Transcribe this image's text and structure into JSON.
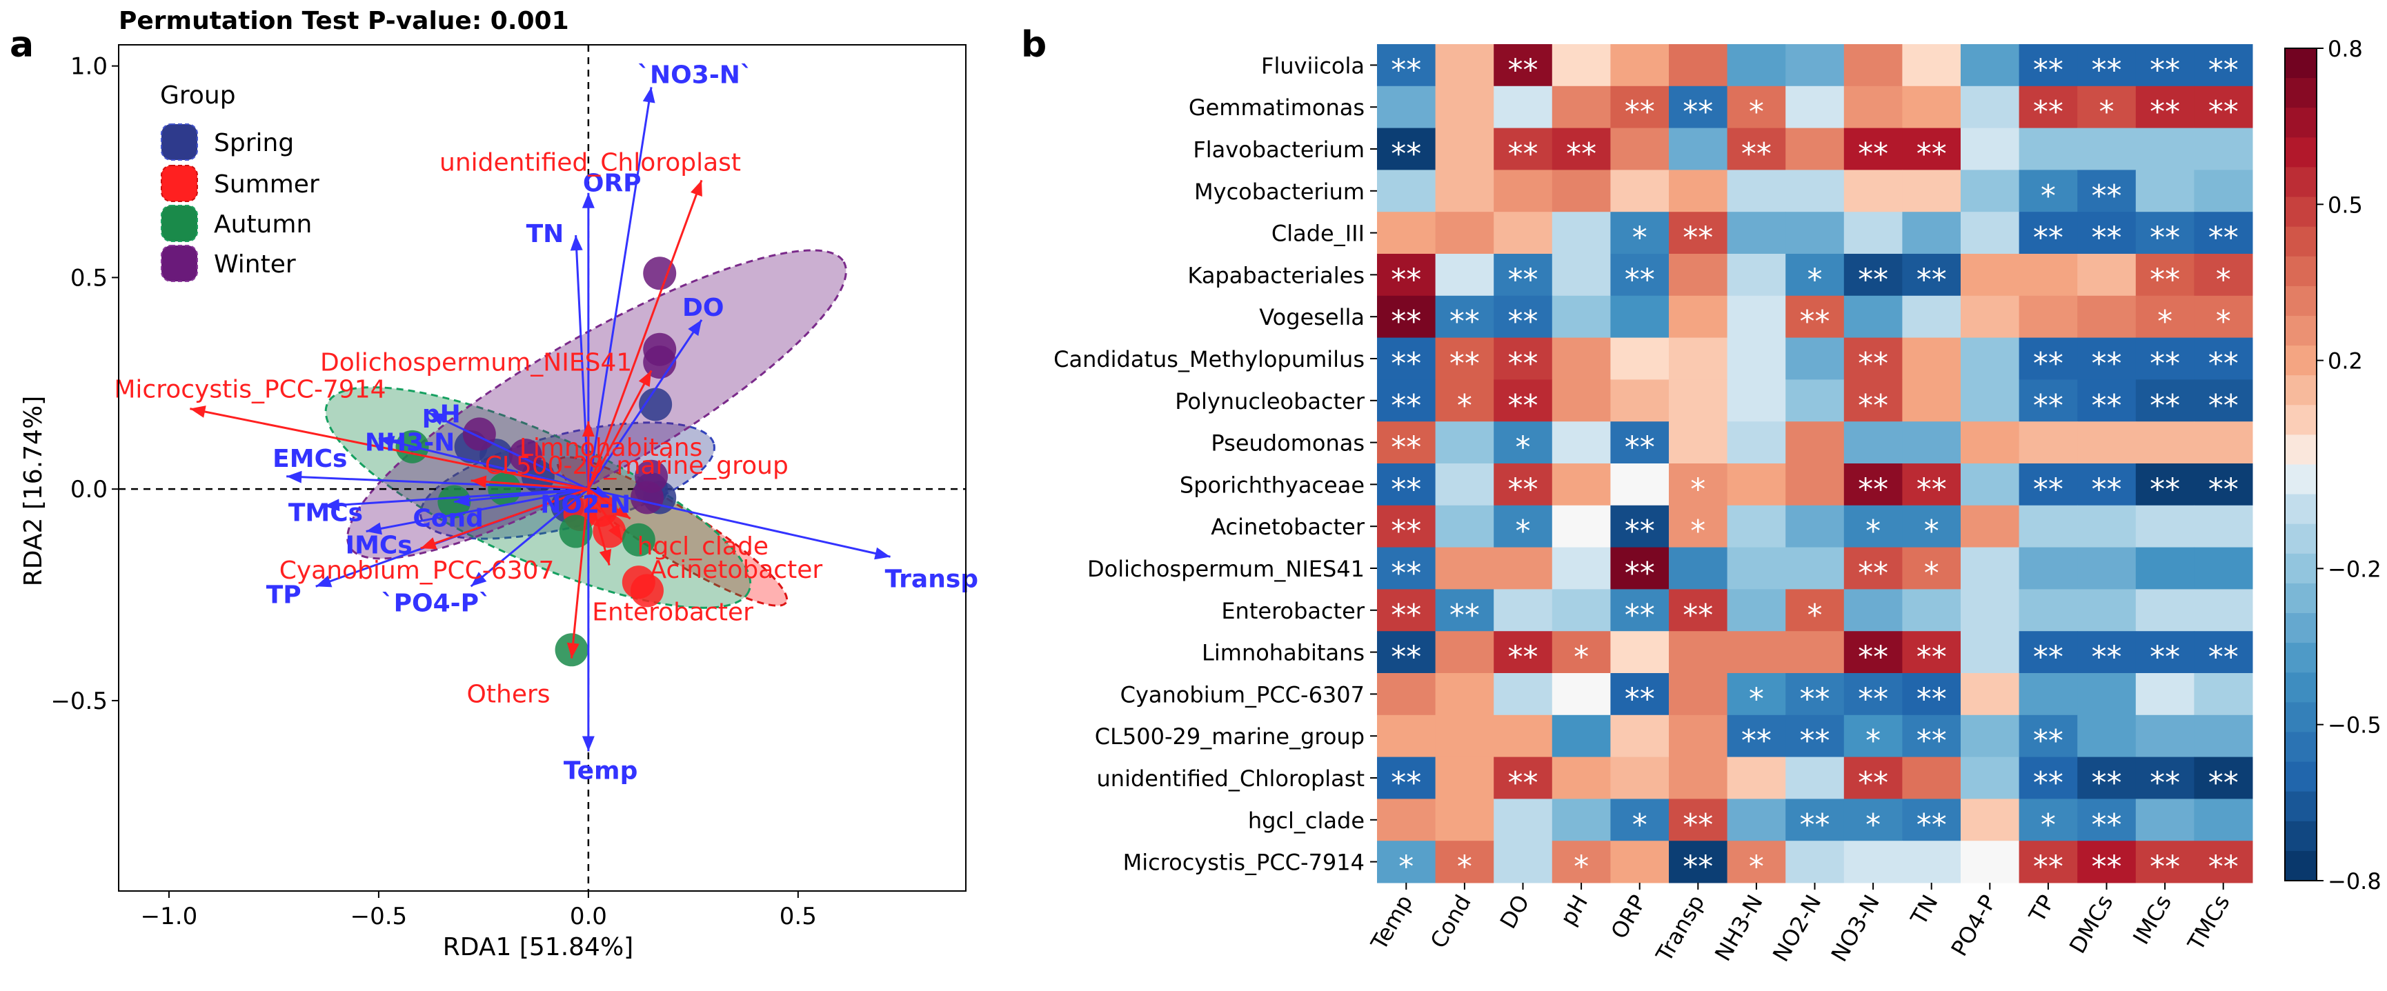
{
  "panels": {
    "a_label": "a",
    "b_label": "b"
  },
  "colors": {
    "biplot_blue": "#3333ff",
    "biplot_red": "#ff2020",
    "spring": "#2e3a8c",
    "summer": "#ff2020",
    "autumn": "#1a8a4a",
    "winter": "#6a1a7a"
  },
  "chart_data": [
    {
      "type": "scatter",
      "subtype": "rda_biplot",
      "title": "Permutation Test P-value: 0.001",
      "xlabel": "RDA1 [51.84%]",
      "ylabel": "RDA2 [16.74%]",
      "xlim": [
        -1.12,
        0.9
      ],
      "ylim": [
        -0.95,
        1.05
      ],
      "xticks": [
        -1.0,
        -0.5,
        0.0,
        0.5
      ],
      "xtick_labels": [
        "−1.0",
        "−0.5",
        "0.0",
        "0.5"
      ],
      "yticks": [
        -0.5,
        0.0,
        0.5,
        1.0
      ],
      "ytick_labels": [
        "−0.5",
        "0.0",
        "0.5",
        "1.0"
      ],
      "legend": {
        "title": "Group",
        "position": "top-left",
        "entries": [
          "Spring",
          "Summer",
          "Autumn",
          "Winter"
        ]
      },
      "groups": [
        {
          "name": "Spring",
          "color": "#2e3a8c",
          "ellipse": {
            "cx": -0.05,
            "cy": 0.02,
            "rx": 0.36,
            "ry": 0.11,
            "angle_deg": 14
          },
          "points": [
            [
              -0.28,
              0.1
            ],
            [
              -0.22,
              0.08
            ],
            [
              -0.12,
              0.03
            ],
            [
              0.15,
              0.0
            ],
            [
              0.17,
              -0.02
            ],
            [
              0.16,
              0.2
            ],
            [
              -0.05,
              -0.04
            ]
          ]
        },
        {
          "name": "Summer",
          "color": "#ff2020",
          "ellipse": {
            "cx": 0.2,
            "cy": -0.1,
            "rx": 0.32,
            "ry": 0.06,
            "angle_deg": -32
          },
          "points": [
            [
              0.12,
              -0.22
            ],
            [
              0.14,
              -0.24
            ],
            [
              0.05,
              -0.1
            ],
            [
              0.03,
              -0.05
            ],
            [
              -0.02,
              -0.06
            ]
          ]
        },
        {
          "name": "Autumn",
          "color": "#1a8a4a",
          "ellipse": {
            "cx": -0.12,
            "cy": -0.02,
            "rx": 0.55,
            "ry": 0.15,
            "angle_deg": -24
          },
          "points": [
            [
              -0.42,
              0.1
            ],
            [
              -0.32,
              -0.03
            ],
            [
              -0.04,
              -0.38
            ],
            [
              -0.03,
              -0.1
            ],
            [
              0.12,
              -0.12
            ],
            [
              -0.2,
              0.0
            ]
          ]
        },
        {
          "name": "Winter",
          "color": "#6a1a7a",
          "ellipse": {
            "cx": 0.02,
            "cy": 0.2,
            "rx": 0.68,
            "ry": 0.16,
            "angle_deg": 30
          },
          "points": [
            [
              0.17,
              0.51
            ],
            [
              0.17,
              0.33
            ],
            [
              0.17,
              0.3
            ],
            [
              -0.26,
              0.13
            ],
            [
              -0.15,
              0.08
            ],
            [
              0.15,
              0.03
            ],
            [
              0.14,
              -0.02
            ]
          ]
        }
      ],
      "env_vectors": [
        {
          "label": "`NO3-N`",
          "x": 0.15,
          "y": 0.95
        },
        {
          "label": "ORP",
          "x": 0.0,
          "y": 0.7
        },
        {
          "label": "TN",
          "x": -0.03,
          "y": 0.6
        },
        {
          "label": "DO",
          "x": 0.27,
          "y": 0.4
        },
        {
          "label": "pH",
          "x": -0.38,
          "y": 0.18
        },
        {
          "label": "NH3-N",
          "x": -0.5,
          "y": 0.12
        },
        {
          "label": "EMCs",
          "x": -0.72,
          "y": 0.03
        },
        {
          "label": "TMCs",
          "x": -0.63,
          "y": -0.04
        },
        {
          "label": "IMCs",
          "x": -0.53,
          "y": -0.1
        },
        {
          "label": "Cond",
          "x": -0.32,
          "y": -0.03
        },
        {
          "label": "NO2-N",
          "x": 0.05,
          "y": -0.02
        },
        {
          "label": "TP",
          "x": -0.65,
          "y": -0.23
        },
        {
          "label": "`PO4-P`",
          "x": -0.28,
          "y": -0.23
        },
        {
          "label": "Transp",
          "x": 0.72,
          "y": -0.16
        },
        {
          "label": "Temp",
          "x": 0.0,
          "y": -0.62
        }
      ],
      "taxa_vectors": [
        {
          "label": "unidentified_Chloroplast",
          "x": 0.27,
          "y": 0.73
        },
        {
          "label": "Dolichospermum_NIES41",
          "x": 0.15,
          "y": 0.28
        },
        {
          "label": "Microcystis_PCC-7914",
          "x": -0.95,
          "y": 0.19
        },
        {
          "label": "Limnohabitans",
          "x": 0.0,
          "y": 0.16
        },
        {
          "label": "CL500-29_marine_group",
          "x": -0.28,
          "y": 0.02
        },
        {
          "label": "hgcl_clade",
          "x": 0.1,
          "y": -0.07
        },
        {
          "label": "Cyanobium_PCC-6307",
          "x": -0.4,
          "y": -0.14
        },
        {
          "label": "Acinetobacter",
          "x": 0.08,
          "y": -0.12
        },
        {
          "label": "Enterobacter",
          "x": 0.05,
          "y": -0.18
        },
        {
          "label": "Others",
          "x": -0.04,
          "y": -0.4
        }
      ]
    },
    {
      "type": "heatmap",
      "title": "",
      "rows": [
        "Fluviicola",
        "Gemmatimonas",
        "Flavobacterium",
        "Mycobacterium",
        "Clade_III",
        "Kapabacteriales",
        "Vogesella",
        "Candidatus_Methylopumilus",
        "Polynucleobacter",
        "Pseudomonas",
        "Sporichthyaceae",
        "Acinetobacter",
        "Dolichospermum_NIES41",
        "Enterobacter",
        "Limnohabitans",
        "Cyanobium_PCC-6307",
        "CL500-29_marine_group",
        "unidentified_Chloroplast",
        "hgcl_clade",
        "Microcystis_PCC-7914"
      ],
      "columns": [
        "Temp",
        "Cond",
        "DO",
        "pH",
        "ORP",
        "Transp",
        "NH3-N",
        "NO2-N",
        "NO3-N",
        "TN",
        "PO4-P",
        "TP",
        "DMCs",
        "IMCs",
        "TMCs"
      ],
      "values": [
        [
          -0.55,
          0.15,
          0.7,
          0.05,
          0.2,
          0.35,
          -0.35,
          -0.3,
          0.3,
          0.05,
          -0.35,
          -0.6,
          -0.6,
          -0.6,
          -0.6
        ],
        [
          -0.3,
          0.15,
          -0.05,
          0.3,
          0.4,
          -0.55,
          0.35,
          -0.05,
          0.25,
          0.2,
          -0.1,
          0.5,
          0.45,
          0.55,
          0.55
        ],
        [
          -0.75,
          0.15,
          0.5,
          0.55,
          0.3,
          -0.3,
          0.45,
          0.3,
          0.6,
          0.6,
          -0.05,
          -0.2,
          -0.2,
          -0.2,
          -0.2
        ],
        [
          -0.15,
          0.15,
          0.25,
          0.3,
          0.1,
          0.2,
          -0.1,
          -0.1,
          0.1,
          0.1,
          -0.2,
          -0.45,
          -0.55,
          -0.2,
          -0.25
        ],
        [
          0.2,
          0.25,
          0.15,
          -0.1,
          -0.45,
          0.45,
          -0.3,
          -0.3,
          -0.1,
          -0.3,
          -0.1,
          -0.6,
          -0.6,
          -0.55,
          -0.6
        ],
        [
          0.65,
          -0.05,
          -0.5,
          -0.1,
          -0.5,
          0.3,
          -0.1,
          -0.45,
          -0.7,
          -0.65,
          0.2,
          0.2,
          0.15,
          0.4,
          0.45
        ],
        [
          0.75,
          -0.5,
          -0.55,
          -0.2,
          -0.4,
          0.2,
          -0.05,
          0.4,
          -0.35,
          -0.1,
          0.15,
          0.25,
          0.3,
          0.35,
          0.35
        ],
        [
          -0.6,
          0.4,
          0.5,
          0.25,
          0.05,
          0.1,
          -0.05,
          -0.3,
          0.45,
          0.2,
          -0.2,
          -0.6,
          -0.6,
          -0.6,
          -0.6
        ],
        [
          -0.6,
          0.4,
          0.55,
          0.25,
          0.15,
          0.1,
          -0.05,
          -0.2,
          0.45,
          0.2,
          -0.2,
          -0.55,
          -0.6,
          -0.65,
          -0.65
        ],
        [
          0.4,
          -0.2,
          -0.45,
          -0.05,
          -0.55,
          0.1,
          -0.1,
          0.3,
          -0.3,
          -0.3,
          0.2,
          0.15,
          0.15,
          0.15,
          0.15
        ],
        [
          -0.6,
          -0.1,
          0.5,
          0.2,
          0.0,
          0.25,
          0.2,
          0.3,
          0.7,
          0.55,
          -0.2,
          -0.6,
          -0.6,
          -0.75,
          -0.75
        ],
        [
          0.5,
          -0.2,
          -0.45,
          0.0,
          -0.7,
          0.25,
          -0.15,
          -0.3,
          -0.45,
          -0.45,
          0.25,
          -0.15,
          -0.15,
          -0.1,
          -0.1
        ],
        [
          -0.55,
          0.25,
          0.25,
          -0.05,
          0.75,
          -0.45,
          -0.2,
          -0.2,
          0.45,
          0.35,
          -0.1,
          -0.3,
          -0.3,
          -0.4,
          -0.4
        ],
        [
          0.5,
          -0.45,
          -0.1,
          -0.15,
          -0.45,
          0.5,
          -0.25,
          0.4,
          -0.3,
          -0.2,
          -0.1,
          -0.2,
          -0.2,
          -0.1,
          -0.1
        ],
        [
          -0.7,
          0.3,
          0.55,
          0.35,
          0.05,
          0.3,
          0.3,
          0.3,
          0.7,
          0.55,
          -0.1,
          -0.6,
          -0.6,
          -0.6,
          -0.6
        ],
        [
          0.3,
          0.2,
          -0.1,
          0.0,
          -0.6,
          0.3,
          -0.4,
          -0.5,
          -0.55,
          -0.6,
          0.1,
          -0.35,
          -0.35,
          -0.05,
          -0.15
        ],
        [
          0.2,
          0.2,
          0.2,
          -0.4,
          0.1,
          0.25,
          -0.55,
          -0.55,
          -0.4,
          -0.5,
          -0.25,
          -0.5,
          -0.35,
          -0.3,
          -0.3
        ],
        [
          -0.6,
          0.2,
          0.5,
          0.2,
          0.15,
          0.25,
          0.1,
          -0.1,
          0.5,
          0.35,
          -0.2,
          -0.6,
          -0.7,
          -0.7,
          -0.75
        ],
        [
          0.25,
          0.2,
          -0.1,
          -0.25,
          -0.5,
          0.45,
          -0.3,
          -0.45,
          -0.45,
          -0.5,
          0.1,
          -0.45,
          -0.5,
          -0.3,
          -0.35
        ],
        [
          -0.35,
          0.35,
          -0.1,
          0.3,
          0.2,
          -0.75,
          0.3,
          -0.1,
          -0.05,
          -0.05,
          0.0,
          0.5,
          0.6,
          0.5,
          0.5
        ]
      ],
      "significance": [
        [
          "**",
          "",
          "**",
          "",
          "",
          "",
          "",
          "",
          "",
          "",
          "",
          "**",
          "**",
          "**",
          "**"
        ],
        [
          "",
          "",
          "",
          "",
          "**",
          "**",
          "*",
          "",
          "",
          "",
          "",
          "**",
          "*",
          "**",
          "**"
        ],
        [
          "**",
          "",
          "**",
          "**",
          "",
          "",
          "**",
          "",
          "**",
          "**",
          "",
          "",
          "",
          "",
          ""
        ],
        [
          "",
          "",
          "",
          "",
          "",
          "",
          "",
          "",
          "",
          "",
          "",
          "*",
          "**",
          "",
          ""
        ],
        [
          "",
          "",
          "",
          "",
          "*",
          "**",
          "",
          "",
          "",
          "",
          "",
          "**",
          "**",
          "**",
          "**"
        ],
        [
          "**",
          "",
          "**",
          "",
          "**",
          "",
          "",
          "*",
          "**",
          "**",
          "",
          "",
          "",
          "**",
          "*"
        ],
        [
          "**",
          "**",
          "**",
          "",
          "",
          "",
          "",
          "**",
          "",
          "",
          "",
          "",
          "",
          "*",
          "*"
        ],
        [
          "**",
          "**",
          "**",
          "",
          "",
          "",
          "",
          "",
          "**",
          "",
          "",
          "**",
          "**",
          "**",
          "**"
        ],
        [
          "**",
          "*",
          "**",
          "",
          "",
          "",
          "",
          "",
          "**",
          "",
          "",
          "**",
          "**",
          "**",
          "**"
        ],
        [
          "**",
          "",
          "*",
          "",
          "**",
          "",
          "",
          "",
          "",
          "",
          "",
          "",
          "",
          "",
          ""
        ],
        [
          "**",
          "",
          "**",
          "",
          "",
          "*",
          "",
          "",
          "**",
          "**",
          "",
          "**",
          "**",
          "**",
          "**"
        ],
        [
          "**",
          "",
          "*",
          "",
          "**",
          "*",
          "",
          "",
          "*",
          "*",
          "",
          "",
          "",
          "",
          ""
        ],
        [
          "**",
          "",
          "",
          "",
          "**",
          "",
          "",
          "",
          "**",
          "*",
          "",
          "",
          "",
          "",
          ""
        ],
        [
          "**",
          "**",
          "",
          "",
          "**",
          "**",
          "",
          "*",
          "",
          "",
          "",
          "",
          "",
          "",
          ""
        ],
        [
          "**",
          "",
          "**",
          "*",
          "",
          "",
          "",
          "",
          "**",
          "**",
          "",
          "**",
          "**",
          "**",
          "**"
        ],
        [
          "",
          "",
          "",
          "",
          "**",
          "",
          "*",
          "**",
          "**",
          "**",
          "",
          "",
          "",
          "",
          ""
        ],
        [
          "",
          "",
          "",
          "",
          "",
          "",
          "**",
          "**",
          "*",
          "**",
          "",
          "**",
          "",
          "",
          ""
        ],
        [
          "**",
          "",
          "**",
          "",
          "",
          "",
          "",
          "",
          "**",
          "",
          "",
          "**",
          "**",
          "**",
          "**"
        ],
        [
          "",
          "",
          "",
          "",
          "*",
          "**",
          "",
          "**",
          "*",
          "**",
          "",
          "*",
          "**",
          "",
          ""
        ],
        [
          "*",
          "*",
          "",
          "*",
          "",
          "**",
          "*",
          "",
          "",
          "",
          "",
          "**",
          "**",
          "**",
          "**"
        ]
      ],
      "colorbar": {
        "min": -0.8,
        "max": 0.8,
        "ticks": [
          0.8,
          0.5,
          0.2,
          -0.2,
          -0.5,
          -0.8
        ],
        "tick_labels": [
          "0.8",
          "0.5",
          "0.2",
          "−0.2",
          "−0.5",
          "−0.8"
        ],
        "colormap": "RdBu_r"
      }
    }
  ]
}
